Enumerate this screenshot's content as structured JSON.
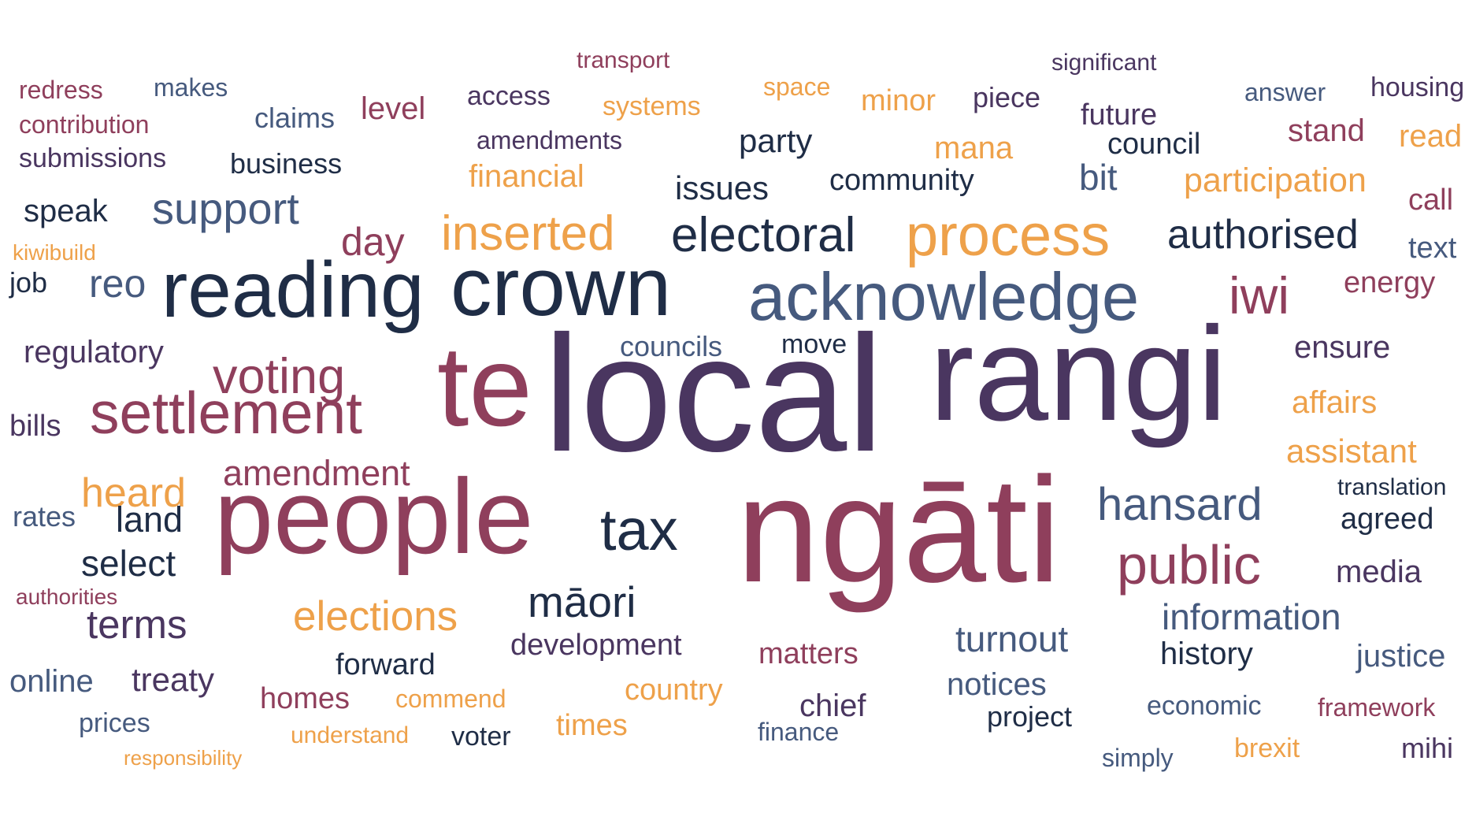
{
  "palette": {
    "navy": "#1f2d46",
    "slate": "#465a7e",
    "plum": "#4a3660",
    "maroon": "#8f3f5c",
    "orange": "#eea14a"
  },
  "words": [
    {
      "text": "local",
      "color": "plum"
    },
    {
      "text": "rangi",
      "color": "plum"
    },
    {
      "text": "ngāti",
      "color": "maroon"
    },
    {
      "text": "te",
      "color": "maroon"
    },
    {
      "text": "people",
      "color": "maroon"
    },
    {
      "text": "crown",
      "color": "navy"
    },
    {
      "text": "reading",
      "color": "navy"
    },
    {
      "text": "acknowledge",
      "color": "slate"
    },
    {
      "text": "process",
      "color": "orange"
    },
    {
      "text": "electoral",
      "color": "navy"
    },
    {
      "text": "authorised",
      "color": "navy"
    },
    {
      "text": "inserted",
      "color": "orange"
    },
    {
      "text": "settlement",
      "color": "maroon"
    },
    {
      "text": "public",
      "color": "maroon"
    },
    {
      "text": "iwi",
      "color": "maroon"
    },
    {
      "text": "tax",
      "color": "navy"
    },
    {
      "text": "hansard",
      "color": "slate"
    },
    {
      "text": "voting",
      "color": "maroon"
    },
    {
      "text": "support",
      "color": "slate"
    },
    {
      "text": "māori",
      "color": "navy"
    },
    {
      "text": "amendment",
      "color": "maroon"
    },
    {
      "text": "elections",
      "color": "orange"
    },
    {
      "text": "heard",
      "color": "orange"
    },
    {
      "text": "terms",
      "color": "plum"
    },
    {
      "text": "information",
      "color": "slate"
    },
    {
      "text": "reo",
      "color": "slate"
    },
    {
      "text": "day",
      "color": "maroon"
    },
    {
      "text": "participation",
      "color": "orange"
    },
    {
      "text": "mana",
      "color": "orange"
    },
    {
      "text": "community",
      "color": "navy"
    },
    {
      "text": "issues",
      "color": "navy"
    },
    {
      "text": "party",
      "color": "navy"
    },
    {
      "text": "bit",
      "color": "slate"
    },
    {
      "text": "land",
      "color": "navy"
    },
    {
      "text": "select",
      "color": "navy"
    },
    {
      "text": "turnout",
      "color": "slate"
    },
    {
      "text": "public",
      "color": "maroon"
    },
    {
      "text": "financial",
      "color": "orange"
    },
    {
      "text": "speak",
      "color": "navy"
    },
    {
      "text": "development",
      "color": "plum"
    },
    {
      "text": "treaty",
      "color": "plum"
    },
    {
      "text": "regulatory",
      "color": "plum"
    },
    {
      "text": "ensure",
      "color": "plum"
    },
    {
      "text": "affairs",
      "color": "orange"
    },
    {
      "text": "assistant",
      "color": "orange"
    },
    {
      "text": "agreed",
      "color": "navy"
    },
    {
      "text": "media",
      "color": "plum"
    },
    {
      "text": "history",
      "color": "navy"
    },
    {
      "text": "justice",
      "color": "slate"
    },
    {
      "text": "matters",
      "color": "maroon"
    },
    {
      "text": "notices",
      "color": "slate"
    },
    {
      "text": "forward",
      "color": "navy"
    },
    {
      "text": "online",
      "color": "slate"
    },
    {
      "text": "homes",
      "color": "maroon"
    },
    {
      "text": "country",
      "color": "orange"
    },
    {
      "text": "chief",
      "color": "plum"
    },
    {
      "text": "times",
      "color": "orange"
    },
    {
      "text": "project",
      "color": "navy"
    },
    {
      "text": "councils",
      "color": "slate"
    },
    {
      "text": "move",
      "color": "navy"
    },
    {
      "text": "energy",
      "color": "maroon"
    },
    {
      "text": "call",
      "color": "maroon"
    },
    {
      "text": "text",
      "color": "slate"
    },
    {
      "text": "read",
      "color": "orange"
    },
    {
      "text": "stand",
      "color": "maroon"
    },
    {
      "text": "housing",
      "color": "plum"
    },
    {
      "text": "answer",
      "color": "slate"
    },
    {
      "text": "council",
      "color": "navy"
    },
    {
      "text": "future",
      "color": "plum"
    },
    {
      "text": "significant",
      "color": "plum"
    },
    {
      "text": "piece",
      "color": "plum"
    },
    {
      "text": "minor",
      "color": "orange"
    },
    {
      "text": "space",
      "color": "orange"
    },
    {
      "text": "systems",
      "color": "orange"
    },
    {
      "text": "transport",
      "color": "maroon"
    },
    {
      "text": "access",
      "color": "plum"
    },
    {
      "text": "amendments",
      "color": "plum"
    },
    {
      "text": "level",
      "color": "maroon"
    },
    {
      "text": "claims",
      "color": "slate"
    },
    {
      "text": "business",
      "color": "navy"
    },
    {
      "text": "makes",
      "color": "slate"
    },
    {
      "text": "redress",
      "color": "maroon"
    },
    {
      "text": "contribution",
      "color": "maroon"
    },
    {
      "text": "submissions",
      "color": "plum"
    },
    {
      "text": "kiwibuild",
      "color": "orange"
    },
    {
      "text": "job",
      "color": "navy"
    },
    {
      "text": "bills",
      "color": "plum"
    },
    {
      "text": "rates",
      "color": "slate"
    },
    {
      "text": "authorities",
      "color": "maroon"
    },
    {
      "text": "prices",
      "color": "slate"
    },
    {
      "text": "responsibility",
      "color": "orange"
    },
    {
      "text": "understand",
      "color": "orange"
    },
    {
      "text": "commend",
      "color": "orange"
    },
    {
      "text": "voter",
      "color": "navy"
    },
    {
      "text": "finance",
      "color": "slate"
    },
    {
      "text": "economic",
      "color": "slate"
    },
    {
      "text": "framework",
      "color": "maroon"
    },
    {
      "text": "simply",
      "color": "slate"
    },
    {
      "text": "brexit",
      "color": "orange"
    },
    {
      "text": "mihi",
      "color": "plum"
    },
    {
      "text": "translation",
      "color": "navy"
    }
  ]
}
